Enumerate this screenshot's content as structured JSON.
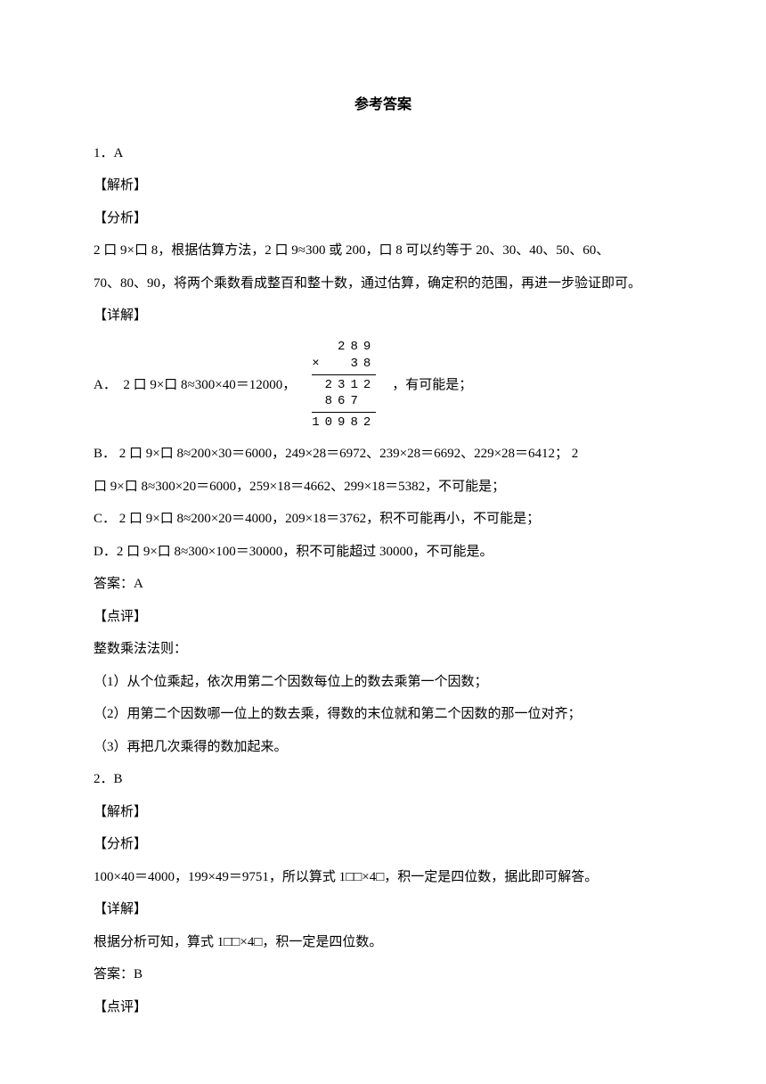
{
  "title": "参考答案",
  "q1": {
    "num": "1．A",
    "jiexi": "【解析】",
    "fenxi": "【分析】",
    "fenxi_line1": "2 口 9×口 8，根据估算方法，2 口 9≈300 或 200，口 8 可以约等于 20、30、40、50、60、",
    "fenxi_line2": "70、80、90，将两个乘数看成整百和整十数，通过估算，确定积的范围，再进一步验证即可。",
    "xiangjie": "【详解】",
    "optA_left": "A．  2 口 9×口 8≈300×40＝12000，",
    "optA_right": "，有可能是；",
    "mult": {
      "r1": "289",
      "r2": "×  38",
      "r3": "2312",
      "r4": "867 ",
      "r5": "10982"
    },
    "optB_l1": "B．  2 口 9×口 8≈200×30＝6000，249×28＝6972、239×28＝6692、229×28＝6412；  2",
    "optB_l2": "口 9×口 8≈300×20＝6000，259×18＝4662、299×18＝5382，不可能是；",
    "optC": "C．  2 口 9×口 8≈200×20＝4000，209×18＝3762，积不可能再小，不可能是；",
    "optD": "D．2 口 9×口 8≈300×100＝30000，积不可能超过 30000，不可能是。",
    "answer": "答案：A",
    "dianping": "【点评】",
    "dp1": "整数乘法法则：",
    "dp2": "（1）从个位乘起，依次用第二个因数每位上的数去乘第一个因数；",
    "dp3": "（2）用第二个因数哪一位上的数去乘，得数的末位就和第二个因数的那一位对齐；",
    "dp4": "（3）再把几次乘得的数加起来。"
  },
  "q2": {
    "num": "2．B",
    "jiexi": "【解析】",
    "fenxi": "【分析】",
    "fenxi_line": "100×40＝4000，199×49＝9751，所以算式 1□□×4□，积一定是四位数，据此即可解答。",
    "xiangjie": "【详解】",
    "xj_line": "根据分析可知，算式 1□□×4□，积一定是四位数。",
    "answer": "答案：B",
    "dianping": "【点评】"
  }
}
